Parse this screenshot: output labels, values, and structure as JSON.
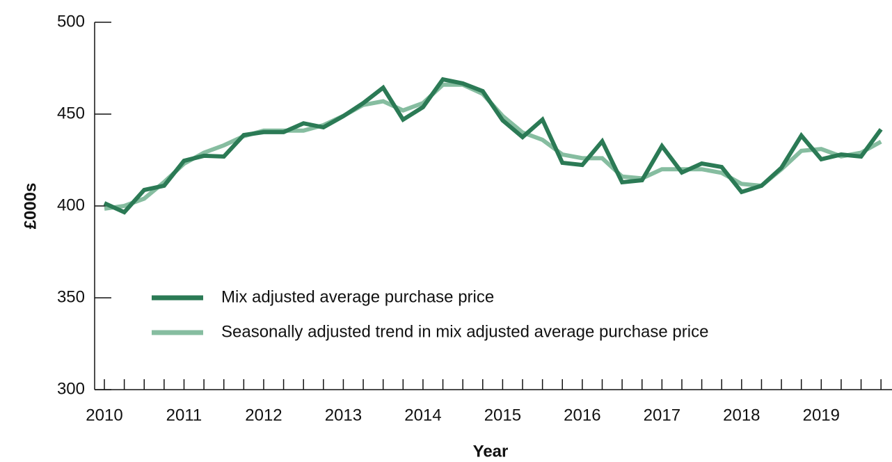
{
  "chart_data": {
    "type": "line",
    "y_label": "£000s",
    "x_label": "Year",
    "categories": [
      "2010",
      null,
      null,
      null,
      "2011",
      null,
      null,
      null,
      "2012",
      null,
      null,
      null,
      "2013",
      null,
      null,
      null,
      "2014",
      null,
      null,
      null,
      "2015",
      null,
      null,
      null,
      "2016",
      null,
      null,
      null,
      "2017",
      null,
      null,
      null,
      "2018",
      null,
      null,
      null,
      "2019",
      null,
      null,
      null
    ],
    "series": [
      {
        "name": "Mix adjusted average purchase price",
        "color": "#2b7a55",
        "values": [
          401.5,
          396.6,
          408.7,
          411,
          424.6,
          427.3,
          426.9,
          438.6,
          440.2,
          440.2,
          445,
          442.8,
          448.9,
          456,
          464.4,
          447,
          453.8,
          468.9,
          466.7,
          462.5,
          446.6,
          437.5,
          447,
          423.5,
          422.3,
          435.2,
          412.9,
          414,
          432.6,
          418.2,
          423.1,
          421.2,
          407.6,
          411,
          420.8,
          438.3,
          425.4,
          428,
          426.9,
          441.7
        ]
      },
      {
        "name": "Seasonally adjusted trend in mix adjusted average purchase price",
        "color": "#86bda0",
        "values": [
          398.5,
          400,
          404,
          413,
          423,
          429,
          433,
          438,
          441,
          441,
          441,
          444,
          449,
          455,
          457,
          452,
          456,
          466,
          466,
          461,
          449,
          440,
          436,
          428,
          426,
          426,
          416,
          415,
          420,
          420,
          420,
          418,
          412,
          411,
          420,
          430,
          431,
          427,
          429,
          435
        ]
      }
    ],
    "ylim": [
      300,
      500
    ],
    "yticks": [
      300,
      350,
      400,
      450,
      500
    ]
  }
}
